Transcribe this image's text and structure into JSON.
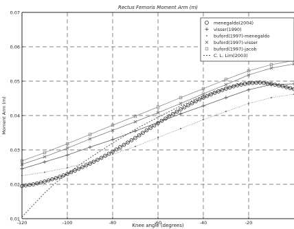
{
  "chart_data": {
    "type": "line",
    "title": "Rectus Femoris Moment Arm (m)",
    "xlabel": "Knee angle (degrees)",
    "ylabel": "Moment Arm (m)",
    "xlim": [
      -120,
      0
    ],
    "ylim": [
      0.01,
      0.07
    ],
    "xticks": [
      -120,
      -100,
      -80,
      -60,
      -40,
      -20
    ],
    "xtick_labels": [
      "-120",
      "-100",
      "-80",
      "-60",
      "-40",
      "-20"
    ],
    "yticks": [
      0.01,
      0.02,
      0.03,
      0.04,
      0.05,
      0.06,
      0.07
    ],
    "ytick_labels": [
      "0.01",
      "0.02",
      "0.03",
      "0.04",
      "0.05",
      "0.06",
      "0.07"
    ],
    "grid": true,
    "legend_position": "top-right",
    "series": [
      {
        "name": "menegaldo(2004)",
        "marker": "circle",
        "color": "#333333",
        "x": [
          -120,
          -115,
          -110,
          -105,
          -100,
          -95,
          -90,
          -85,
          -80,
          -75,
          -70,
          -65,
          -60,
          -55,
          -50,
          -45,
          -40,
          -35,
          -30,
          -25,
          -20,
          -15,
          -10,
          -5,
          0
        ],
        "y": [
          0.0195,
          0.02,
          0.0208,
          0.0218,
          0.023,
          0.0245,
          0.026,
          0.0277,
          0.0295,
          0.0315,
          0.0335,
          0.0357,
          0.0378,
          0.0398,
          0.0418,
          0.0436,
          0.0452,
          0.0466,
          0.0478,
          0.0488,
          0.0494,
          0.0496,
          0.0492,
          0.0485,
          0.0477
        ]
      },
      {
        "name": "visser(1990)",
        "marker": "plus",
        "color": "#555555",
        "x": [
          -120,
          -110,
          -100,
          -90,
          -80,
          -70,
          -60,
          -50,
          -40,
          -30,
          -20,
          -10,
          0
        ],
        "y": [
          0.0245,
          0.0265,
          0.0285,
          0.0308,
          0.033,
          0.0355,
          0.038,
          0.0405,
          0.0428,
          0.0452,
          0.0475,
          0.049,
          0.0492
        ]
      },
      {
        "name": "buford(1997)-menegaldo",
        "marker": "dot",
        "color": "#666666",
        "x": [
          -120,
          -110,
          -100,
          -90,
          -80,
          -70,
          -60,
          -50,
          -40,
          -30,
          -20,
          -10,
          0
        ],
        "y": [
          0.0225,
          0.0235,
          0.0248,
          0.0265,
          0.0287,
          0.031,
          0.0336,
          0.0362,
          0.0388,
          0.0412,
          0.0435,
          0.0452,
          0.0462
        ]
      },
      {
        "name": "buford(1997)-visser",
        "marker": "x",
        "color": "#777777",
        "x": [
          -120,
          -110,
          -100,
          -90,
          -80,
          -70,
          -60,
          -50,
          -40,
          -30,
          -20,
          -10,
          0
        ],
        "y": [
          0.0258,
          0.028,
          0.0305,
          0.0332,
          0.0357,
          0.0382,
          0.0408,
          0.0435,
          0.0463,
          0.049,
          0.0518,
          0.0538,
          0.055
        ]
      },
      {
        "name": "buford(1997)-jacob",
        "marker": "square",
        "color": "#888888",
        "x": [
          -120,
          -110,
          -100,
          -90,
          -80,
          -70,
          -60,
          -50,
          -40,
          -30,
          -20,
          -10,
          0
        ],
        "y": [
          0.0268,
          0.0292,
          0.0318,
          0.0345,
          0.0372,
          0.0398,
          0.0425,
          0.0452,
          0.0478,
          0.0505,
          0.053,
          0.0548,
          0.056
        ]
      },
      {
        "name": "C. L. Lim(2003)",
        "marker": "line",
        "color": "#444444",
        "x": [
          -120,
          -115,
          -110,
          -105,
          -100,
          -95,
          -90,
          -80,
          -70,
          -60,
          -50,
          -40,
          -30,
          -20,
          -15,
          -10,
          -5,
          0
        ],
        "y": [
          0.0105,
          0.014,
          0.0175,
          0.0205,
          0.023,
          0.0255,
          0.0277,
          0.032,
          0.036,
          0.0395,
          0.0428,
          0.0458,
          0.0482,
          0.0498,
          0.0499,
          0.0494,
          0.0486,
          0.0478
        ]
      }
    ]
  }
}
